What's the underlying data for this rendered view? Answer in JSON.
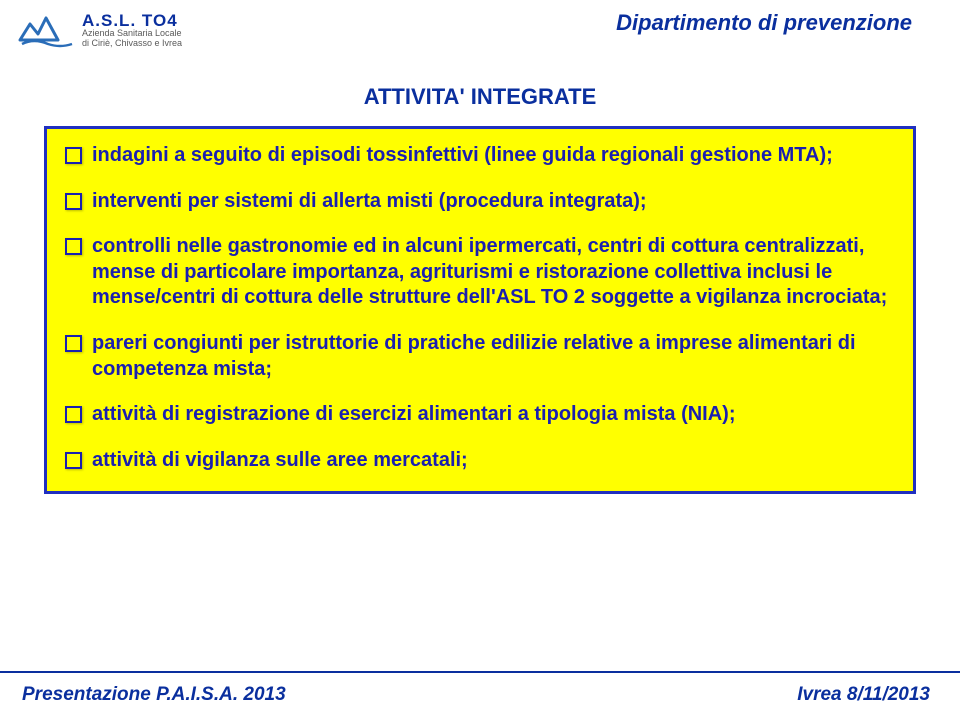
{
  "colors": {
    "headerTitle": "#0a2f9e",
    "sectionTitle": "#0a2f9e",
    "boxBg": "#ffff00",
    "boxBorder": "#2030c0",
    "bulletText": "#1a1fb0",
    "bulletSquare": "#1a1fb0",
    "footerBorder": "#0a2f9e",
    "footerLeft": "#0a2f9e",
    "footerRight": "#0a2f9e",
    "logoMain": "#0a2f9e",
    "logoSub": "#5a5a5a"
  },
  "logo": {
    "main": "A.S.L. TO4",
    "sub1": "Azienda Sanitaria Locale",
    "sub2": "di Ciriè, Chivasso e Ivrea"
  },
  "headerTitle": "Dipartimento di prevenzione",
  "sectionTitle": "ATTIVITA' INTEGRATE",
  "bullets": [
    "indagini a seguito di episodi tossinfettivi (linee guida regionali gestione MTA);",
    "interventi per sistemi di allerta misti (procedura integrata);",
    "controlli nelle gastronomie ed in alcuni ipermercati, centri di cottura centralizzati, mense di  particolare importanza, agriturismi e ristorazione collettiva inclusi le mense/centri di cottura delle strutture dell'ASL TO 2 soggette a vigilanza incrociata;",
    "pareri congiunti per istruttorie di pratiche edilizie relative a imprese alimentari di competenza mista;",
    "attività di registrazione di esercizi alimentari a tipologia mista (NIA);",
    "attività di vigilanza sulle aree mercatali;"
  ],
  "footerLeft": "Presentazione P.A.I.S.A. 2013",
  "footerRight": "Ivrea 8/11/2013"
}
